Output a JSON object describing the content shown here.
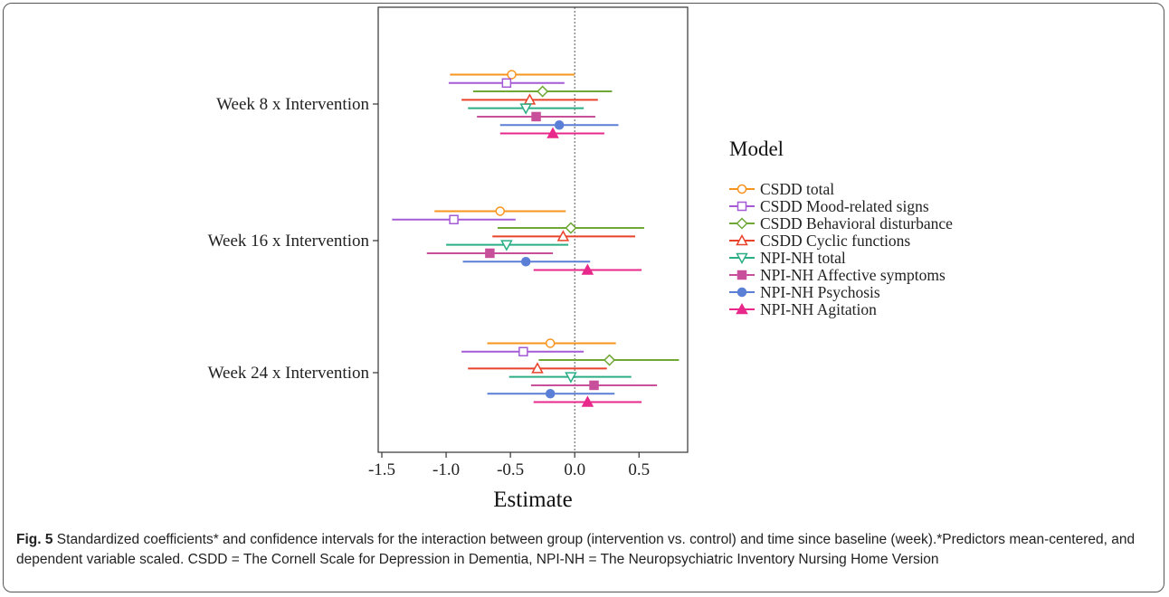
{
  "chart_data": {
    "type": "forest",
    "xlabel": "Estimate",
    "xlim": [
      -1.5,
      0.85
    ],
    "xticks": [
      -1.5,
      -1.0,
      -0.5,
      0.0,
      0.5
    ],
    "xtick_labels": [
      "-1.5",
      "-1.0",
      "-0.5",
      "0.0",
      "0.5"
    ],
    "reference_line": 0,
    "categories": [
      "Week 8 x Intervention",
      "Week 16 x Intervention",
      "Week 24 x Intervention"
    ],
    "legend_title": "Model",
    "legend_position": "right",
    "series": [
      {
        "name": "CSDD total",
        "color": "#F7941D",
        "marker": "circle-open",
        "estimate": [
          -0.49,
          -0.58,
          -0.19
        ],
        "lower": [
          -0.97,
          -1.09,
          -0.68
        ],
        "upper": [
          0.0,
          -0.07,
          0.32
        ]
      },
      {
        "name": "CSDD Mood-related signs",
        "color": "#A65BD6",
        "marker": "square-open",
        "estimate": [
          -0.53,
          -0.94,
          -0.4
        ],
        "lower": [
          -0.98,
          -1.42,
          -0.88
        ],
        "upper": [
          -0.08,
          -0.46,
          0.07
        ]
      },
      {
        "name": "CSDD Behavioral disturbance",
        "color": "#6FA835",
        "marker": "diamond-open",
        "estimate": [
          -0.25,
          -0.03,
          0.27
        ],
        "lower": [
          -0.79,
          -0.6,
          -0.28
        ],
        "upper": [
          0.29,
          0.54,
          0.81
        ]
      },
      {
        "name": "CSDD Cyclic functions",
        "color": "#E8432A",
        "marker": "triangle-up-open",
        "estimate": [
          -0.35,
          -0.09,
          -0.29
        ],
        "lower": [
          -0.88,
          -0.64,
          -0.83
        ],
        "upper": [
          0.18,
          0.47,
          0.25
        ]
      },
      {
        "name": "NPI-NH total",
        "color": "#2BAE85",
        "marker": "triangle-down-open",
        "estimate": [
          -0.38,
          -0.53,
          -0.03
        ],
        "lower": [
          -0.83,
          -1.0,
          -0.51
        ],
        "upper": [
          0.07,
          -0.05,
          0.44
        ]
      },
      {
        "name": "NPI-NH Affective symptoms",
        "color": "#C8509A",
        "marker": "square",
        "estimate": [
          -0.3,
          -0.66,
          0.15
        ],
        "lower": [
          -0.76,
          -1.15,
          -0.34
        ],
        "upper": [
          0.16,
          -0.17,
          0.64
        ]
      },
      {
        "name": "NPI-NH Psychosis",
        "color": "#5B7FD6",
        "marker": "circle",
        "estimate": [
          -0.12,
          -0.38,
          -0.19
        ],
        "lower": [
          -0.58,
          -0.87,
          -0.68
        ],
        "upper": [
          0.34,
          0.12,
          0.31
        ]
      },
      {
        "name": "NPI-NH Agitation",
        "color": "#E8288A",
        "marker": "triangle-up",
        "estimate": [
          -0.17,
          0.1,
          0.1
        ],
        "lower": [
          -0.58,
          -0.32,
          -0.32
        ],
        "upper": [
          0.23,
          0.52,
          0.52
        ]
      }
    ]
  },
  "caption": {
    "fig_label": "Fig. 5",
    "text": "Standardized coefficients* and confidence intervals for the interaction between group (intervention vs. control) and time since baseline (week).*Predictors mean-centered, and dependent variable scaled. CSDD = The Cornell Scale for Depression in Dementia, NPI-NH = The Neuropsychiatric Inventory Nursing Home Version"
  }
}
